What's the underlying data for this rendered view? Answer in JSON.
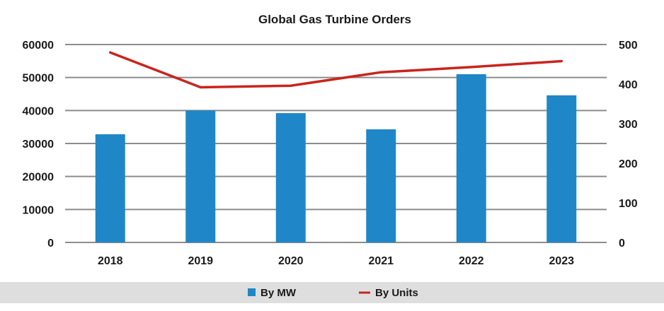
{
  "chart_data": {
    "type": "bar",
    "title": "Global Gas Turbine Orders",
    "categories": [
      "2018",
      "2019",
      "2020",
      "2021",
      "2022",
      "2023"
    ],
    "series": [
      {
        "name": "By MW",
        "type": "bar",
        "axis": "left",
        "values": [
          32800,
          40000,
          39200,
          34300,
          51000,
          44600
        ]
      },
      {
        "name": "By Units",
        "type": "line",
        "axis": "right",
        "values": [
          480,
          392,
          396,
          430,
          443,
          458
        ]
      }
    ],
    "y_left": {
      "min": 0,
      "max": 60000,
      "ticks": [
        "0",
        "10000",
        "20000",
        "30000",
        "40000",
        "50000",
        "60000"
      ]
    },
    "y_right": {
      "min": 0,
      "max": 500,
      "ticks": [
        "0",
        "100",
        "200",
        "300",
        "400",
        "500"
      ]
    },
    "grid": true,
    "legend_position": "bottom",
    "colors": {
      "bar": "#1f87c7",
      "line": "#c8251d",
      "grid": "#8c8c8c",
      "legend_band": "#dedede"
    }
  }
}
